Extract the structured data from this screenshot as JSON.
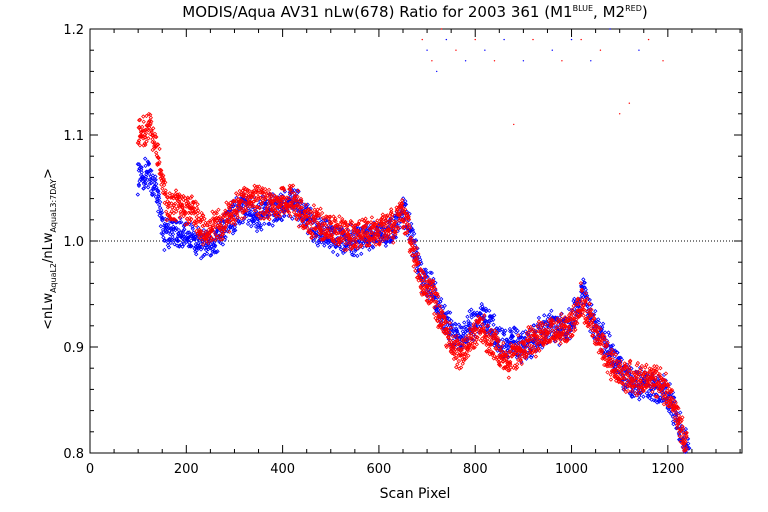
{
  "chart_data": {
    "type": "scatter",
    "title": "MODIS/Aqua AV31 nLw(678) Ratio for 2003 361 (M1",
    "title_sup1": "BLUE",
    "title_mid": ", M2",
    "title_sup2": "RED",
    "title_end": ")",
    "xlabel": "Scan Pixel",
    "ylabel_parts": [
      "<nLw",
      "AquaL2",
      "/nLw",
      "AquaL3:7DAY",
      ">"
    ],
    "xlim": [
      0,
      1354
    ],
    "ylim": [
      0.8,
      1.2
    ],
    "x_ticks": [
      "0",
      "200",
      "400",
      "600",
      "800",
      "1000",
      "1200"
    ],
    "y_ticks": [
      "0.8",
      "0.9",
      "1.0",
      "1.1",
      "1.2"
    ],
    "reference_line": 1.0,
    "grid": false,
    "legend": "none",
    "series": [
      {
        "color": "#0000ff",
        "points": [
          [
            100,
            1.06
          ],
          [
            120,
            1.065
          ],
          [
            140,
            1.045
          ],
          [
            155,
            1.005
          ],
          [
            170,
            1.01
          ],
          [
            200,
            1.005
          ],
          [
            230,
            0.998
          ],
          [
            260,
            1.0
          ],
          [
            290,
            1.02
          ],
          [
            320,
            1.03
          ],
          [
            350,
            1.025
          ],
          [
            380,
            1.03
          ],
          [
            410,
            1.035
          ],
          [
            440,
            1.03
          ],
          [
            470,
            1.01
          ],
          [
            500,
            1.005
          ],
          [
            530,
            1.0
          ],
          [
            560,
            1.002
          ],
          [
            590,
            1.005
          ],
          [
            620,
            1.005
          ],
          [
            650,
            1.03
          ],
          [
            670,
            1.0
          ],
          [
            690,
            0.965
          ],
          [
            710,
            0.955
          ],
          [
            730,
            0.93
          ],
          [
            750,
            0.915
          ],
          [
            770,
            0.905
          ],
          [
            800,
            0.925
          ],
          [
            820,
            0.93
          ],
          [
            840,
            0.915
          ],
          [
            860,
            0.9
          ],
          [
            880,
            0.905
          ],
          [
            900,
            0.9
          ],
          [
            930,
            0.91
          ],
          [
            960,
            0.92
          ],
          [
            990,
            0.915
          ],
          [
            1010,
            0.935
          ],
          [
            1025,
            0.955
          ],
          [
            1040,
            0.93
          ],
          [
            1060,
            0.91
          ],
          [
            1080,
            0.895
          ],
          [
            1100,
            0.88
          ],
          [
            1120,
            0.865
          ],
          [
            1150,
            0.865
          ],
          [
            1180,
            0.86
          ],
          [
            1200,
            0.855
          ],
          [
            1215,
            0.84
          ],
          [
            1230,
            0.815
          ],
          [
            1245,
            0.8
          ]
        ],
        "outliers": [
          [
            700,
            1.18
          ],
          [
            720,
            1.16
          ],
          [
            740,
            1.19
          ],
          [
            780,
            1.17
          ],
          [
            820,
            1.18
          ],
          [
            860,
            1.19
          ],
          [
            900,
            1.17
          ],
          [
            960,
            1.18
          ],
          [
            1000,
            1.19
          ],
          [
            1040,
            1.17
          ],
          [
            1080,
            1.2
          ],
          [
            1140,
            1.18
          ]
        ]
      },
      {
        "color": "#ff0000",
        "points": [
          [
            100,
            1.1
          ],
          [
            115,
            1.105
          ],
          [
            125,
            1.11
          ],
          [
            140,
            1.085
          ],
          [
            160,
            1.03
          ],
          [
            180,
            1.035
          ],
          [
            210,
            1.03
          ],
          [
            240,
            1.01
          ],
          [
            270,
            1.015
          ],
          [
            300,
            1.03
          ],
          [
            330,
            1.04
          ],
          [
            360,
            1.035
          ],
          [
            390,
            1.035
          ],
          [
            420,
            1.04
          ],
          [
            450,
            1.02
          ],
          [
            480,
            1.015
          ],
          [
            510,
            1.01
          ],
          [
            540,
            1.005
          ],
          [
            570,
            1.008
          ],
          [
            600,
            1.01
          ],
          [
            630,
            1.015
          ],
          [
            650,
            1.025
          ],
          [
            670,
            0.995
          ],
          [
            690,
            0.96
          ],
          [
            710,
            0.95
          ],
          [
            730,
            0.925
          ],
          [
            750,
            0.905
          ],
          [
            770,
            0.89
          ],
          [
            790,
            0.905
          ],
          [
            810,
            0.92
          ],
          [
            830,
            0.905
          ],
          [
            850,
            0.895
          ],
          [
            870,
            0.885
          ],
          [
            890,
            0.895
          ],
          [
            910,
            0.905
          ],
          [
            940,
            0.91
          ],
          [
            970,
            0.915
          ],
          [
            1000,
            0.92
          ],
          [
            1020,
            0.945
          ],
          [
            1040,
            0.925
          ],
          [
            1060,
            0.9
          ],
          [
            1080,
            0.885
          ],
          [
            1100,
            0.875
          ],
          [
            1130,
            0.87
          ],
          [
            1160,
            0.87
          ],
          [
            1190,
            0.865
          ],
          [
            1210,
            0.845
          ],
          [
            1225,
            0.825
          ],
          [
            1240,
            0.805
          ]
        ],
        "outliers": [
          [
            690,
            1.19
          ],
          [
            710,
            1.17
          ],
          [
            730,
            1.2
          ],
          [
            760,
            1.18
          ],
          [
            800,
            1.19
          ],
          [
            840,
            1.17
          ],
          [
            880,
            1.11
          ],
          [
            920,
            1.19
          ],
          [
            980,
            1.17
          ],
          [
            1020,
            1.19
          ],
          [
            1060,
            1.18
          ],
          [
            1100,
            1.12
          ],
          [
            1120,
            1.13
          ],
          [
            1160,
            1.19
          ],
          [
            1190,
            1.17
          ]
        ]
      }
    ]
  }
}
